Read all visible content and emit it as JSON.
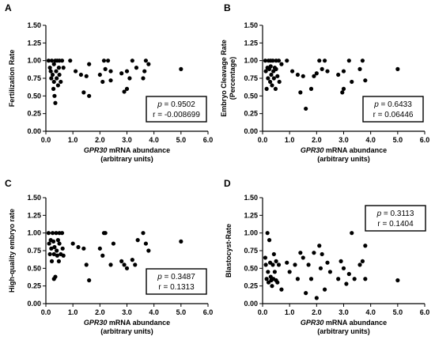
{
  "chart_data": [
    {
      "type": "scatter",
      "panel": "A",
      "ylabel": [
        "Fertilization Rate"
      ],
      "xlabel_italic": "GPR30",
      "xlabel_rest": " mRNA abundance",
      "xlabel_line2": "(arbitrary units)",
      "xlim": [
        0,
        6
      ],
      "ylim": [
        0,
        1.5
      ],
      "xticks": [
        "0.0",
        "1.0",
        "2.0",
        "3.0",
        "4.0",
        "5.0",
        "6.0"
      ],
      "yticks": [
        "0.00",
        "0.25",
        "0.50",
        "0.75",
        "1.00",
        "1.25",
        "1.50"
      ],
      "stats": {
        "p_label": "p",
        "p_value": " = 0.9502",
        "r_text": "r = -0.008699",
        "box": "bottom-right"
      },
      "points": [
        [
          0.1,
          1.0
        ],
        [
          0.15,
          0.9
        ],
        [
          0.18,
          0.85
        ],
        [
          0.2,
          0.75
        ],
        [
          0.22,
          1.0
        ],
        [
          0.25,
          0.8
        ],
        [
          0.28,
          0.6
        ],
        [
          0.3,
          0.95
        ],
        [
          0.3,
          0.7
        ],
        [
          0.32,
          0.5
        ],
        [
          0.35,
          1.0
        ],
        [
          0.35,
          0.4
        ],
        [
          0.38,
          0.85
        ],
        [
          0.4,
          0.75
        ],
        [
          0.42,
          1.0
        ],
        [
          0.45,
          0.65
        ],
        [
          0.48,
          0.9
        ],
        [
          0.5,
          0.8
        ],
        [
          0.5,
          1.0
        ],
        [
          0.55,
          0.7
        ],
        [
          0.6,
          1.0
        ],
        [
          0.65,
          0.9
        ],
        [
          0.9,
          1.0
        ],
        [
          1.1,
          0.85
        ],
        [
          1.3,
          0.8
        ],
        [
          1.4,
          0.55
        ],
        [
          1.5,
          0.78
        ],
        [
          1.6,
          0.5
        ],
        [
          1.6,
          0.95
        ],
        [
          2.0,
          0.8
        ],
        [
          2.1,
          0.7
        ],
        [
          2.15,
          1.0
        ],
        [
          2.2,
          0.88
        ],
        [
          2.3,
          1.0
        ],
        [
          2.4,
          0.85
        ],
        [
          2.4,
          0.72
        ],
        [
          2.8,
          0.82
        ],
        [
          2.9,
          0.56
        ],
        [
          3.0,
          0.6
        ],
        [
          3.0,
          0.85
        ],
        [
          3.1,
          0.75
        ],
        [
          3.2,
          1.0
        ],
        [
          3.35,
          0.9
        ],
        [
          3.6,
          0.75
        ],
        [
          3.65,
          0.85
        ],
        [
          3.7,
          1.0
        ],
        [
          3.8,
          0.95
        ],
        [
          5.0,
          0.88
        ]
      ]
    },
    {
      "type": "scatter",
      "panel": "B",
      "ylabel": [
        "Embryo Cleavage Rate",
        "(Percentage)"
      ],
      "xlabel_italic": "GPR30",
      "xlabel_rest": " mRNA abundance",
      "xlabel_line2": "(arbitrary units)",
      "xlim": [
        0,
        6
      ],
      "ylim": [
        0,
        1.5
      ],
      "xticks": [
        "0.0",
        "1.0",
        "2.0",
        "3.0",
        "4.0",
        "5.0",
        "6.0"
      ],
      "yticks": [
        "0.00",
        "0.25",
        "0.50",
        "0.75",
        "1.00",
        "1.25",
        "1.50"
      ],
      "stats": {
        "p_label": "p",
        "p_value": " = 0.6433",
        "r_text": "r = 0.06446",
        "box": "bottom-right"
      },
      "points": [
        [
          0.1,
          1.0
        ],
        [
          0.12,
          0.85
        ],
        [
          0.15,
          0.6
        ],
        [
          0.18,
          0.9
        ],
        [
          0.2,
          0.75
        ],
        [
          0.22,
          1.0
        ],
        [
          0.25,
          0.88
        ],
        [
          0.28,
          0.7
        ],
        [
          0.3,
          1.0
        ],
        [
          0.3,
          0.92
        ],
        [
          0.32,
          0.8
        ],
        [
          0.35,
          0.65
        ],
        [
          0.38,
          1.0
        ],
        [
          0.4,
          0.85
        ],
        [
          0.42,
          0.75
        ],
        [
          0.45,
          0.9
        ],
        [
          0.48,
          0.6
        ],
        [
          0.5,
          0.88
        ],
        [
          0.5,
          1.0
        ],
        [
          0.55,
          0.78
        ],
        [
          0.6,
          1.0
        ],
        [
          0.62,
          0.7
        ],
        [
          0.7,
          0.95
        ],
        [
          0.9,
          1.0
        ],
        [
          1.1,
          0.85
        ],
        [
          1.3,
          0.8
        ],
        [
          1.4,
          0.55
        ],
        [
          1.5,
          0.78
        ],
        [
          1.6,
          0.32
        ],
        [
          1.8,
          0.6
        ],
        [
          1.9,
          0.78
        ],
        [
          2.0,
          0.82
        ],
        [
          2.1,
          1.0
        ],
        [
          2.2,
          0.88
        ],
        [
          2.3,
          1.0
        ],
        [
          2.4,
          0.85
        ],
        [
          2.8,
          0.8
        ],
        [
          2.95,
          0.55
        ],
        [
          3.0,
          0.6
        ],
        [
          3.0,
          0.85
        ],
        [
          3.2,
          1.0
        ],
        [
          3.3,
          0.7
        ],
        [
          3.6,
          0.88
        ],
        [
          3.7,
          1.0
        ],
        [
          3.8,
          0.72
        ],
        [
          5.0,
          0.88
        ]
      ]
    },
    {
      "type": "scatter",
      "panel": "C",
      "ylabel": [
        "High-quality embryo rate"
      ],
      "xlabel_italic": "GPR30",
      "xlabel_rest": " mRNA abundance",
      "xlabel_line2": "(arbitrary units)",
      "xlim": [
        0,
        6
      ],
      "ylim": [
        0,
        1.5
      ],
      "xticks": [
        "0.0",
        "1.0",
        "2.0",
        "3.0",
        "4.0",
        "5.0",
        "6.0"
      ],
      "yticks": [
        "0.00",
        "0.25",
        "0.50",
        "0.75",
        "1.00",
        "1.25",
        "1.50"
      ],
      "stats": {
        "p_label": "p",
        "p_value": " = 0.3487",
        "r_text": "r = 0.1313",
        "box": "bottom-right"
      },
      "points": [
        [
          0.1,
          1.0
        ],
        [
          0.12,
          0.85
        ],
        [
          0.15,
          0.7
        ],
        [
          0.18,
          0.9
        ],
        [
          0.2,
          0.78
        ],
        [
          0.22,
          0.6
        ],
        [
          0.25,
          1.0
        ],
        [
          0.28,
          0.88
        ],
        [
          0.3,
          0.7
        ],
        [
          0.3,
          0.35
        ],
        [
          0.32,
          0.8
        ],
        [
          0.35,
          0.38
        ],
        [
          0.38,
          1.0
        ],
        [
          0.4,
          0.75
        ],
        [
          0.42,
          0.68
        ],
        [
          0.45,
          0.9
        ],
        [
          0.48,
          0.6
        ],
        [
          0.5,
          0.85
        ],
        [
          0.5,
          1.0
        ],
        [
          0.55,
          0.7
        ],
        [
          0.6,
          1.0
        ],
        [
          0.62,
          0.78
        ],
        [
          0.65,
          0.68
        ],
        [
          1.0,
          0.85
        ],
        [
          1.2,
          0.8
        ],
        [
          1.4,
          0.78
        ],
        [
          1.5,
          0.55
        ],
        [
          1.6,
          0.33
        ],
        [
          2.0,
          0.78
        ],
        [
          2.1,
          0.68
        ],
        [
          2.15,
          1.0
        ],
        [
          2.2,
          1.0
        ],
        [
          2.4,
          0.55
        ],
        [
          2.5,
          0.85
        ],
        [
          2.8,
          0.6
        ],
        [
          2.9,
          0.55
        ],
        [
          3.0,
          0.5
        ],
        [
          3.2,
          0.62
        ],
        [
          3.3,
          0.55
        ],
        [
          3.4,
          0.9
        ],
        [
          3.6,
          1.0
        ],
        [
          3.7,
          0.85
        ],
        [
          3.8,
          0.75
        ],
        [
          5.0,
          0.88
        ]
      ]
    },
    {
      "type": "scatter",
      "panel": "D",
      "ylabel": [
        "Blastocyst-Rate"
      ],
      "xlabel_italic": "GPR30",
      "xlabel_rest": " mRNA abundance",
      "xlabel_line2": "(arbitrary units)",
      "xlim": [
        0,
        6
      ],
      "ylim": [
        0,
        1.5
      ],
      "xticks": [
        "0.0",
        "1.0",
        "2.0",
        "3.0",
        "4.0",
        "5.0",
        "6.0"
      ],
      "yticks": [
        "0.00",
        "0.25",
        "0.50",
        "0.75",
        "1.00",
        "1.25",
        "1.50"
      ],
      "stats": {
        "p_label": "p",
        "p_value": " = 0.3113",
        "r_text": "r = 0.1404",
        "box": "top-middle"
      },
      "points": [
        [
          0.1,
          0.65
        ],
        [
          0.12,
          0.55
        ],
        [
          0.15,
          0.35
        ],
        [
          0.18,
          1.0
        ],
        [
          0.2,
          0.45
        ],
        [
          0.22,
          0.3
        ],
        [
          0.25,
          0.9
        ],
        [
          0.28,
          0.58
        ],
        [
          0.3,
          0.38
        ],
        [
          0.32,
          0.33
        ],
        [
          0.35,
          0.25
        ],
        [
          0.38,
          0.55
        ],
        [
          0.4,
          0.35
        ],
        [
          0.42,
          0.7
        ],
        [
          0.45,
          0.45
        ],
        [
          0.5,
          0.6
        ],
        [
          0.5,
          0.33
        ],
        [
          0.55,
          0.3
        ],
        [
          0.6,
          0.55
        ],
        [
          0.7,
          0.2
        ],
        [
          0.9,
          0.58
        ],
        [
          1.0,
          0.45
        ],
        [
          1.2,
          0.55
        ],
        [
          1.3,
          0.35
        ],
        [
          1.4,
          0.72
        ],
        [
          1.5,
          0.65
        ],
        [
          1.6,
          0.15
        ],
        [
          1.7,
          0.55
        ],
        [
          1.8,
          0.35
        ],
        [
          1.9,
          0.72
        ],
        [
          2.0,
          0.08
        ],
        [
          2.1,
          0.82
        ],
        [
          2.15,
          0.5
        ],
        [
          2.2,
          0.7
        ],
        [
          2.3,
          0.2
        ],
        [
          2.4,
          0.58
        ],
        [
          2.5,
          0.45
        ],
        [
          2.8,
          0.35
        ],
        [
          2.9,
          0.6
        ],
        [
          3.0,
          0.5
        ],
        [
          3.1,
          0.28
        ],
        [
          3.2,
          0.42
        ],
        [
          3.3,
          1.0
        ],
        [
          3.4,
          0.35
        ],
        [
          3.6,
          0.55
        ],
        [
          3.7,
          0.6
        ],
        [
          3.8,
          0.82
        ],
        [
          3.8,
          0.35
        ],
        [
          5.0,
          0.33
        ]
      ]
    }
  ]
}
